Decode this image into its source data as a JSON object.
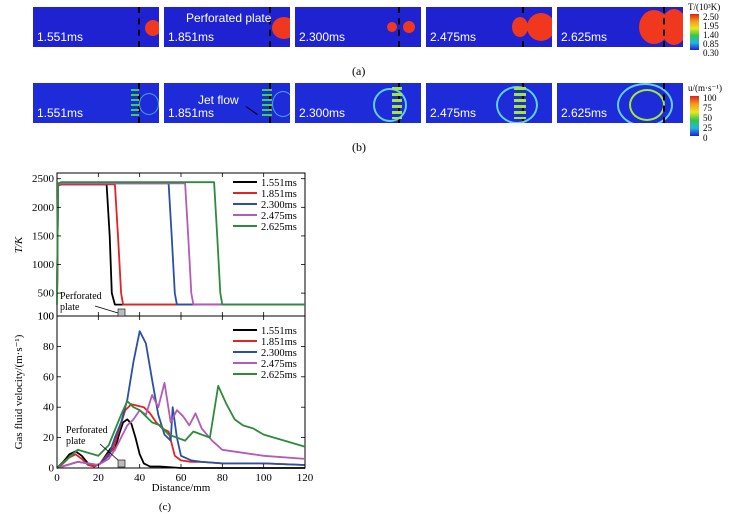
{
  "row_a": {
    "times": [
      "1.551ms",
      "1.851ms",
      "2.300ms",
      "2.475ms",
      "2.625ms"
    ],
    "plate_label": "Perforated plate",
    "sublabel": "(a)",
    "colorbar": {
      "title": "T/(10³K)",
      "ticks": [
        "2.50",
        "1.95",
        "1.40",
        "0.85",
        "0.30"
      ]
    }
  },
  "row_b": {
    "times": [
      "1.551ms",
      "1.851ms",
      "2.300ms",
      "2.475ms",
      "2.625ms"
    ],
    "jet_label": "Jet flow",
    "sublabel": "(b)",
    "colorbar": {
      "title": "u/(m·s⁻¹)",
      "ticks": [
        "100",
        "75",
        "50",
        "25",
        "0"
      ]
    }
  },
  "figure_c": {
    "sublabel": "(c)",
    "xlabel": "Distance/mm",
    "xticks": [
      "0",
      "20",
      "40",
      "60",
      "80",
      "100",
      "120"
    ],
    "plate_annotation": [
      "Perforated",
      "plate"
    ],
    "colors": {
      "1.551ms": "#000000",
      "1.851ms": "#e32222",
      "2.300ms": "#2a4fa6",
      "2.475ms": "#b45ab8",
      "2.625ms": "#2e8b3a"
    },
    "legend": [
      "1.551ms",
      "1.851ms",
      "2.300ms",
      "2.475ms",
      "2.625ms"
    ]
  },
  "chart_data": [
    {
      "type": "line",
      "title": "",
      "xlabel": "Distance/mm",
      "ylabel": "T/K",
      "xlim": [
        0,
        120
      ],
      "ylim": [
        100,
        2600
      ],
      "yticks": [
        "100",
        "500",
        "1000",
        "1500",
        "2000",
        "2500"
      ],
      "series": [
        {
          "name": "1.551ms",
          "x": [
            0,
            0.5,
            2,
            24,
            25.5,
            26.5,
            28,
            120
          ],
          "y": [
            300,
            2380,
            2400,
            2400,
            1500,
            500,
            300,
            300
          ]
        },
        {
          "name": "1.851ms",
          "x": [
            0,
            0.5,
            2,
            28,
            29.5,
            31,
            32,
            120
          ],
          "y": [
            300,
            2380,
            2400,
            2400,
            1500,
            500,
            300,
            300
          ]
        },
        {
          "name": "2.300ms",
          "x": [
            0,
            0.5,
            2,
            54,
            55.5,
            57,
            58,
            120
          ],
          "y": [
            300,
            2400,
            2420,
            2420,
            1500,
            500,
            300,
            300
          ]
        },
        {
          "name": "2.475ms",
          "x": [
            0,
            0.5,
            2,
            62,
            63.5,
            65,
            66,
            120
          ],
          "y": [
            300,
            2400,
            2420,
            2420,
            1500,
            500,
            300,
            300
          ]
        },
        {
          "name": "2.625ms",
          "x": [
            0,
            0.5,
            2,
            76,
            77.5,
            79,
            80,
            120
          ],
          "y": [
            300,
            2420,
            2440,
            2440,
            1500,
            500,
            300,
            300
          ]
        }
      ]
    },
    {
      "type": "line",
      "title": "",
      "xlabel": "Distance/mm",
      "ylabel": "Gas fluid velocity/(m·s⁻¹)",
      "xlim": [
        0,
        120
      ],
      "ylim": [
        0,
        100
      ],
      "yticks": [
        "0",
        "20",
        "40",
        "60",
        "80",
        "100"
      ],
      "series": [
        {
          "name": "1.551ms",
          "x": [
            0,
            3,
            6,
            9,
            12,
            15,
            18,
            21,
            24,
            26,
            28,
            30,
            32,
            34,
            36,
            38,
            40,
            42,
            45,
            50,
            60,
            80,
            100,
            120
          ],
          "y": [
            0,
            4,
            9,
            11,
            8,
            3,
            1,
            3,
            9,
            13,
            12,
            22,
            30,
            32,
            29,
            20,
            9,
            3,
            1,
            1,
            0,
            0,
            0,
            0
          ]
        },
        {
          "name": "1.851ms",
          "x": [
            0,
            3,
            6,
            9,
            12,
            15,
            18,
            21,
            24,
            27,
            30,
            33,
            36,
            39,
            42,
            45,
            48,
            51,
            54,
            57,
            60,
            65,
            70,
            80,
            100,
            120
          ],
          "y": [
            0,
            3,
            7,
            9,
            6,
            2,
            1,
            3,
            8,
            12,
            25,
            38,
            42,
            41,
            40,
            36,
            30,
            26,
            24,
            8,
            5,
            4,
            4,
            3,
            3,
            2
          ]
        },
        {
          "name": "2.300ms",
          "x": [
            0,
            5,
            10,
            15,
            20,
            25,
            28,
            31,
            34,
            37,
            40,
            43,
            46,
            49,
            52,
            55,
            56,
            58,
            60,
            65,
            70,
            80,
            100,
            120
          ],
          "y": [
            0,
            2,
            4,
            3,
            2,
            8,
            20,
            30,
            45,
            70,
            90,
            82,
            58,
            35,
            22,
            18,
            40,
            20,
            8,
            5,
            4,
            3,
            3,
            2
          ]
        },
        {
          "name": "2.475ms",
          "x": [
            0,
            5,
            10,
            15,
            20,
            25,
            28,
            31,
            34,
            37,
            40,
            43,
            46,
            49,
            52,
            55,
            58,
            61,
            64,
            67,
            70,
            75,
            80,
            90,
            100,
            120
          ],
          "y": [
            0,
            2,
            4,
            3,
            2,
            6,
            12,
            20,
            28,
            32,
            38,
            35,
            48,
            40,
            56,
            30,
            38,
            34,
            28,
            36,
            26,
            18,
            12,
            10,
            8,
            6
          ]
        },
        {
          "name": "2.625ms",
          "x": [
            0,
            5,
            10,
            15,
            20,
            25,
            28,
            31,
            34,
            37,
            40,
            43,
            46,
            50,
            54,
            58,
            62,
            66,
            70,
            74,
            78,
            82,
            86,
            90,
            95,
            100,
            110,
            120
          ],
          "y": [
            0,
            6,
            12,
            10,
            8,
            15,
            25,
            35,
            44,
            40,
            38,
            34,
            30,
            28,
            22,
            20,
            18,
            24,
            22,
            20,
            54,
            42,
            32,
            28,
            26,
            22,
            18,
            14
          ]
        }
      ]
    }
  ]
}
